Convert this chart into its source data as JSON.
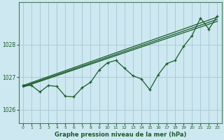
{
  "title": "Graphe pression niveau de la mer (hPa)",
  "bg_color": "#cde8f0",
  "grid_color": "#aacbd8",
  "line_color": "#1a5c2a",
  "xlim": [
    -0.5,
    23.5
  ],
  "ylim": [
    1025.6,
    1029.3
  ],
  "yticks": [
    1026,
    1027,
    1028
  ],
  "xticks": [
    0,
    1,
    2,
    3,
    4,
    5,
    6,
    7,
    8,
    9,
    10,
    11,
    12,
    13,
    14,
    15,
    16,
    17,
    18,
    19,
    20,
    21,
    22,
    23
  ],
  "trend_lines": [
    [
      [
        0,
        23
      ],
      [
        1026.75,
        1028.85
      ]
    ],
    [
      [
        0,
        23
      ],
      [
        1026.72,
        1028.78
      ]
    ],
    [
      [
        0,
        23
      ],
      [
        1026.7,
        1028.72
      ]
    ]
  ],
  "measured": [
    1026.75,
    1026.75,
    1026.55,
    1026.75,
    1026.72,
    1026.42,
    1026.4,
    1026.68,
    1026.85,
    1027.22,
    1027.45,
    1027.52,
    1027.28,
    1027.05,
    1026.95,
    1026.62,
    1027.08,
    1027.42,
    1027.52,
    1027.95,
    1028.28,
    1028.82,
    1028.48,
    1028.88
  ]
}
